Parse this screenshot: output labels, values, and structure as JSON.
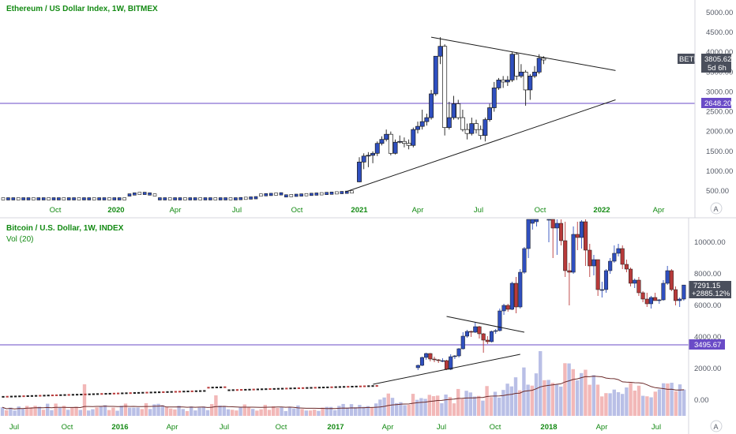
{
  "colors": {
    "up_eth": "#2f4fbf",
    "down_eth": "#ffffff",
    "up_btc": "#2f4fbf",
    "down_btc": "#b83a3a",
    "hline": "#6a4bc7",
    "vol_up": "#b9bfe6",
    "vol_down": "#f2b8b8",
    "ma": "#6b2a2a",
    "axis_text": "#555a66",
    "time_text": "#138a13"
  },
  "top_pane": {
    "title": "Ethereum / US Dollar Index, 1W, BITMEX",
    "y_ticks": [
      "5000.00",
      "4500.00",
      "4000.00",
      "3500.00",
      "3000.00",
      "2500.00",
      "2000.00",
      "1500.00",
      "1000.00",
      "500.00"
    ],
    "x_ticks": [
      {
        "label": "Oct",
        "bold": false
      },
      {
        "label": "2020",
        "bold": true
      },
      {
        "label": "Apr",
        "bold": false
      },
      {
        "label": "Jul",
        "bold": false
      },
      {
        "label": "Oct",
        "bold": false
      },
      {
        "label": "2021",
        "bold": true
      },
      {
        "label": "Apr",
        "bold": false
      },
      {
        "label": "Jul",
        "bold": false
      },
      {
        "label": "Oct",
        "bold": false
      },
      {
        "label": "2022",
        "bold": true
      },
      {
        "label": "Apr",
        "bold": false
      }
    ],
    "price_tag": {
      "symbol": "BETH",
      "price": "3805.62",
      "countdown": "5d 6h"
    },
    "hline_label": "2648.20",
    "scale_button": "A"
  },
  "bottom_pane": {
    "title": "Bitcoin / U.S. Dollar, 1W, INDEX",
    "indicator": "Vol (20)",
    "y_ticks": [
      "10000.00",
      "8000.00",
      "6000.00",
      "4000.00",
      "2000.00",
      "0.00"
    ],
    "x_ticks": [
      {
        "label": "Jul",
        "bold": false
      },
      {
        "label": "Oct",
        "bold": false
      },
      {
        "label": "2016",
        "bold": true
      },
      {
        "label": "Apr",
        "bold": false
      },
      {
        "label": "Jul",
        "bold": false
      },
      {
        "label": "Oct",
        "bold": false
      },
      {
        "label": "2017",
        "bold": true
      },
      {
        "label": "Apr",
        "bold": false
      },
      {
        "label": "Jul",
        "bold": false
      },
      {
        "label": "Oct",
        "bold": false
      },
      {
        "label": "2018",
        "bold": true
      },
      {
        "label": "Apr",
        "bold": false
      },
      {
        "label": "Jul",
        "bold": false
      }
    ],
    "price_tag": {
      "price": "7291.15",
      "change": "+2885.12%"
    },
    "hline_label": "3495.67",
    "scale_button": "A"
  },
  "chart_data": [
    {
      "type": "candlestick",
      "title": "Ethereum / US Dollar Index, 1W, BITMEX",
      "ylim": [
        0,
        5300
      ],
      "horizontal_line": 2648.2,
      "last_price": 3805.62,
      "trendlines": [
        {
          "from": [
            "2021-04-26",
            4380
          ],
          "to": [
            "2022-02-07",
            3540
          ]
        },
        {
          "from": [
            "2020-12-14",
            480
          ],
          "to": [
            "2022-02-07",
            2800
          ]
        }
      ],
      "candles": [
        {
          "x": "2021-01-04",
          "o": 730,
          "h": 1350,
          "l": 720,
          "c": 1230
        },
        {
          "x": "2021-01-11",
          "o": 1230,
          "h": 1450,
          "l": 1050,
          "c": 1380
        },
        {
          "x": "2021-01-18",
          "o": 1380,
          "h": 1480,
          "l": 1100,
          "c": 1400
        },
        {
          "x": "2021-01-25",
          "o": 1400,
          "h": 1500,
          "l": 1200,
          "c": 1450
        },
        {
          "x": "2021-02-01",
          "o": 1450,
          "h": 1750,
          "l": 1380,
          "c": 1700
        },
        {
          "x": "2021-02-08",
          "o": 1700,
          "h": 1880,
          "l": 1650,
          "c": 1800
        },
        {
          "x": "2021-02-15",
          "o": 1800,
          "h": 2050,
          "l": 1750,
          "c": 1930
        },
        {
          "x": "2021-02-22",
          "o": 1930,
          "h": 2000,
          "l": 1400,
          "c": 1450
        },
        {
          "x": "2021-03-01",
          "o": 1450,
          "h": 1800,
          "l": 1420,
          "c": 1730
        },
        {
          "x": "2021-03-08",
          "o": 1730,
          "h": 1900,
          "l": 1700,
          "c": 1750
        },
        {
          "x": "2021-03-15",
          "o": 1750,
          "h": 1850,
          "l": 1600,
          "c": 1700
        },
        {
          "x": "2021-03-22",
          "o": 1700,
          "h": 1800,
          "l": 1550,
          "c": 1650
        },
        {
          "x": "2021-03-29",
          "o": 1650,
          "h": 2100,
          "l": 1600,
          "c": 2050
        },
        {
          "x": "2021-04-05",
          "o": 2050,
          "h": 2250,
          "l": 1950,
          "c": 2130
        },
        {
          "x": "2021-04-12",
          "o": 2130,
          "h": 2550,
          "l": 2050,
          "c": 2250
        },
        {
          "x": "2021-04-19",
          "o": 2250,
          "h": 2450,
          "l": 2150,
          "c": 2350
        },
        {
          "x": "2021-04-26",
          "o": 2350,
          "h": 3050,
          "l": 2300,
          "c": 2950
        },
        {
          "x": "2021-05-03",
          "o": 2950,
          "h": 3900,
          "l": 2900,
          "c": 3900
        },
        {
          "x": "2021-05-10",
          "o": 3900,
          "h": 4380,
          "l": 3700,
          "c": 4150
        },
        {
          "x": "2021-05-17",
          "o": 4150,
          "h": 4200,
          "l": 1900,
          "c": 2100
        },
        {
          "x": "2021-05-24",
          "o": 2100,
          "h": 2750,
          "l": 2050,
          "c": 2350
        },
        {
          "x": "2021-05-31",
          "o": 2350,
          "h": 2900,
          "l": 2300,
          "c": 2700
        },
        {
          "x": "2021-06-07",
          "o": 2700,
          "h": 2800,
          "l": 2300,
          "c": 2350
        },
        {
          "x": "2021-06-14",
          "o": 2350,
          "h": 2550,
          "l": 2000,
          "c": 2050
        },
        {
          "x": "2021-06-21",
          "o": 2050,
          "h": 2200,
          "l": 1800,
          "c": 1950
        },
        {
          "x": "2021-06-28",
          "o": 1950,
          "h": 2350,
          "l": 1900,
          "c": 2200
        },
        {
          "x": "2021-07-05",
          "o": 2200,
          "h": 2300,
          "l": 1950,
          "c": 2050
        },
        {
          "x": "2021-07-12",
          "o": 2050,
          "h": 2150,
          "l": 1800,
          "c": 1900
        },
        {
          "x": "2021-07-19",
          "o": 1900,
          "h": 2350,
          "l": 1750,
          "c": 2300
        },
        {
          "x": "2021-07-26",
          "o": 2300,
          "h": 2700,
          "l": 2250,
          "c": 2600
        },
        {
          "x": "2021-08-02",
          "o": 2600,
          "h": 3250,
          "l": 2500,
          "c": 3100
        },
        {
          "x": "2021-08-09",
          "o": 3100,
          "h": 3350,
          "l": 3050,
          "c": 3300
        },
        {
          "x": "2021-08-16",
          "o": 3300,
          "h": 3400,
          "l": 3100,
          "c": 3250
        },
        {
          "x": "2021-08-23",
          "o": 3250,
          "h": 3400,
          "l": 3150,
          "c": 3300
        },
        {
          "x": "2021-08-30",
          "o": 3300,
          "h": 4000,
          "l": 3250,
          "c": 3950
        },
        {
          "x": "2021-09-06",
          "o": 3950,
          "h": 4000,
          "l": 3300,
          "c": 3400
        },
        {
          "x": "2021-09-13",
          "o": 3400,
          "h": 3700,
          "l": 3350,
          "c": 3500
        },
        {
          "x": "2021-09-20",
          "o": 3500,
          "h": 3550,
          "l": 2650,
          "c": 3050
        },
        {
          "x": "2021-09-27",
          "o": 3050,
          "h": 3450,
          "l": 2800,
          "c": 3400
        },
        {
          "x": "2021-10-04",
          "o": 3400,
          "h": 3650,
          "l": 3350,
          "c": 3500
        },
        {
          "x": "2021-10-11",
          "o": 3500,
          "h": 3950,
          "l": 3450,
          "c": 3850
        },
        {
          "x": "2021-10-18",
          "o": 3850,
          "h": 3900,
          "l": 3700,
          "c": 3805.62
        }
      ]
    },
    {
      "type": "candlestick",
      "title": "Bitcoin / U.S. Dollar, 1W, INDEX",
      "ylim": [
        -700,
        11500
      ],
      "horizontal_line": 3495.67,
      "last_price": 7291.15,
      "trendlines": [
        {
          "from": [
            "2017-03-06",
            1000
          ],
          "to": [
            "2017-11-13",
            2900
          ]
        },
        {
          "from": [
            "2017-07-10",
            5300
          ],
          "to": [
            "2017-11-20",
            4300
          ]
        }
      ],
      "candles": [
        {
          "x": "2017-05-22",
          "o": 2050,
          "h": 2250,
          "l": 1900,
          "c": 2200
        },
        {
          "x": "2017-05-29",
          "o": 2200,
          "h": 2750,
          "l": 2150,
          "c": 2700
        },
        {
          "x": "2017-06-05",
          "o": 2700,
          "h": 3000,
          "l": 2550,
          "c": 2950
        },
        {
          "x": "2017-06-12",
          "o": 2950,
          "h": 2980,
          "l": 2450,
          "c": 2600
        },
        {
          "x": "2017-06-19",
          "o": 2600,
          "h": 2750,
          "l": 2400,
          "c": 2550
        },
        {
          "x": "2017-06-26",
          "o": 2550,
          "h": 2600,
          "l": 2350,
          "c": 2500
        },
        {
          "x": "2017-07-03",
          "o": 2500,
          "h": 2650,
          "l": 2400,
          "c": 2500
        },
        {
          "x": "2017-07-10",
          "o": 2500,
          "h": 2550,
          "l": 1900,
          "c": 1950
        },
        {
          "x": "2017-07-17",
          "o": 1950,
          "h": 2900,
          "l": 1900,
          "c": 2750
        },
        {
          "x": "2017-07-24",
          "o": 2750,
          "h": 2850,
          "l": 2600,
          "c": 2800
        },
        {
          "x": "2017-07-31",
          "o": 2800,
          "h": 3300,
          "l": 2700,
          "c": 3250
        },
        {
          "x": "2017-08-07",
          "o": 3250,
          "h": 4300,
          "l": 3200,
          "c": 4050
        },
        {
          "x": "2017-08-14",
          "o": 4050,
          "h": 4450,
          "l": 3950,
          "c": 4350
        },
        {
          "x": "2017-08-21",
          "o": 4350,
          "h": 4400,
          "l": 4000,
          "c": 4300
        },
        {
          "x": "2017-08-28",
          "o": 4300,
          "h": 4950,
          "l": 4250,
          "c": 4650
        },
        {
          "x": "2017-09-04",
          "o": 4650,
          "h": 4700,
          "l": 3900,
          "c": 4200
        },
        {
          "x": "2017-09-11",
          "o": 4200,
          "h": 4250,
          "l": 3000,
          "c": 3800
        },
        {
          "x": "2017-09-18",
          "o": 3800,
          "h": 4050,
          "l": 3550,
          "c": 3700
        },
        {
          "x": "2017-09-25",
          "o": 3700,
          "h": 4400,
          "l": 3650,
          "c": 4350
        },
        {
          "x": "2017-10-02",
          "o": 4350,
          "h": 4500,
          "l": 4200,
          "c": 4400
        },
        {
          "x": "2017-10-09",
          "o": 4400,
          "h": 5800,
          "l": 4350,
          "c": 5650
        },
        {
          "x": "2017-10-16",
          "o": 5650,
          "h": 6100,
          "l": 5400,
          "c": 6000
        },
        {
          "x": "2017-10-23",
          "o": 6000,
          "h": 6100,
          "l": 5600,
          "c": 5750
        },
        {
          "x": "2017-10-30",
          "o": 5750,
          "h": 7500,
          "l": 5700,
          "c": 7400
        },
        {
          "x": "2017-11-06",
          "o": 7400,
          "h": 7800,
          "l": 5500,
          "c": 5900
        },
        {
          "x": "2017-11-13",
          "o": 5900,
          "h": 8300,
          "l": 5800,
          "c": 8100
        },
        {
          "x": "2017-11-20",
          "o": 8100,
          "h": 9700,
          "l": 8000,
          "c": 9600
        },
        {
          "x": "2017-11-27",
          "o": 9600,
          "h": 11500,
          "l": 9000,
          "c": 11500
        },
        {
          "x": "2017-12-04",
          "o": 11200,
          "h": 11500,
          "l": 10800,
          "c": 11500
        },
        {
          "x": "2017-12-11",
          "o": 11300,
          "h": 11500,
          "l": 11000,
          "c": 11500
        },
        {
          "x": "2018-01-01",
          "o": 11500,
          "h": 11500,
          "l": 10000,
          "c": 11500
        },
        {
          "x": "2018-01-08",
          "o": 11500,
          "h": 11500,
          "l": 9000,
          "c": 10900
        },
        {
          "x": "2018-01-15",
          "o": 10900,
          "h": 11500,
          "l": 9200,
          "c": 11200
        },
        {
          "x": "2018-01-22",
          "o": 11200,
          "h": 11500,
          "l": 9800,
          "c": 10100
        },
        {
          "x": "2018-01-29",
          "o": 10100,
          "h": 11300,
          "l": 7800,
          "c": 8200
        },
        {
          "x": "2018-02-05",
          "o": 8200,
          "h": 8700,
          "l": 6000,
          "c": 8100
        },
        {
          "x": "2018-02-12",
          "o": 8100,
          "h": 11000,
          "l": 8000,
          "c": 10500
        },
        {
          "x": "2018-02-19",
          "o": 10500,
          "h": 11300,
          "l": 9500,
          "c": 10300
        },
        {
          "x": "2018-02-26",
          "o": 10300,
          "h": 11400,
          "l": 9600,
          "c": 11300
        },
        {
          "x": "2018-03-05",
          "o": 11300,
          "h": 11500,
          "l": 8500,
          "c": 9500
        },
        {
          "x": "2018-03-12",
          "o": 9500,
          "h": 9900,
          "l": 7800,
          "c": 8500
        },
        {
          "x": "2018-03-19",
          "o": 8500,
          "h": 9200,
          "l": 7900,
          "c": 8900
        },
        {
          "x": "2018-03-26",
          "o": 8900,
          "h": 8900,
          "l": 6600,
          "c": 7000
        },
        {
          "x": "2018-04-02",
          "o": 7000,
          "h": 7500,
          "l": 6500,
          "c": 7000
        },
        {
          "x": "2018-04-09",
          "o": 7000,
          "h": 8300,
          "l": 6800,
          "c": 8200
        },
        {
          "x": "2018-04-16",
          "o": 8200,
          "h": 9000,
          "l": 8000,
          "c": 8800
        },
        {
          "x": "2018-04-23",
          "o": 8800,
          "h": 9800,
          "l": 8700,
          "c": 9300
        },
        {
          "x": "2018-04-30",
          "o": 9300,
          "h": 9900,
          "l": 9100,
          "c": 9600
        },
        {
          "x": "2018-05-07",
          "o": 9600,
          "h": 9800,
          "l": 8300,
          "c": 8600
        },
        {
          "x": "2018-05-14",
          "o": 8600,
          "h": 8900,
          "l": 8100,
          "c": 8300
        },
        {
          "x": "2018-05-21",
          "o": 8300,
          "h": 8400,
          "l": 7200,
          "c": 7400
        },
        {
          "x": "2018-05-28",
          "o": 7400,
          "h": 7700,
          "l": 7100,
          "c": 7600
        },
        {
          "x": "2018-06-04",
          "o": 7600,
          "h": 7800,
          "l": 6600,
          "c": 6800
        },
        {
          "x": "2018-06-11",
          "o": 6800,
          "h": 6900,
          "l": 6200,
          "c": 6400
        },
        {
          "x": "2018-06-18",
          "o": 6400,
          "h": 6800,
          "l": 5900,
          "c": 6100
        },
        {
          "x": "2018-06-25",
          "o": 6100,
          "h": 6600,
          "l": 5800,
          "c": 6500
        },
        {
          "x": "2018-07-02",
          "o": 6500,
          "h": 6800,
          "l": 6300,
          "c": 6300
        },
        {
          "x": "2018-07-09",
          "o": 6300,
          "h": 6400,
          "l": 6100,
          "c": 6350
        },
        {
          "x": "2018-07-16",
          "o": 6350,
          "h": 7600,
          "l": 6300,
          "c": 7400
        },
        {
          "x": "2018-07-23",
          "o": 7400,
          "h": 8500,
          "l": 7300,
          "c": 8200
        },
        {
          "x": "2018-07-30",
          "o": 8200,
          "h": 8300,
          "l": 6900,
          "c": 7000
        },
        {
          "x": "2018-08-06",
          "o": 7000,
          "h": 7200,
          "l": 6000,
          "c": 6300
        },
        {
          "x": "2018-08-13",
          "o": 6300,
          "h": 6500,
          "l": 5900,
          "c": 6400
        },
        {
          "x": "2018-08-20",
          "o": 6400,
          "h": 7300,
          "l": 6300,
          "c": 7291.15
        }
      ]
    }
  ]
}
